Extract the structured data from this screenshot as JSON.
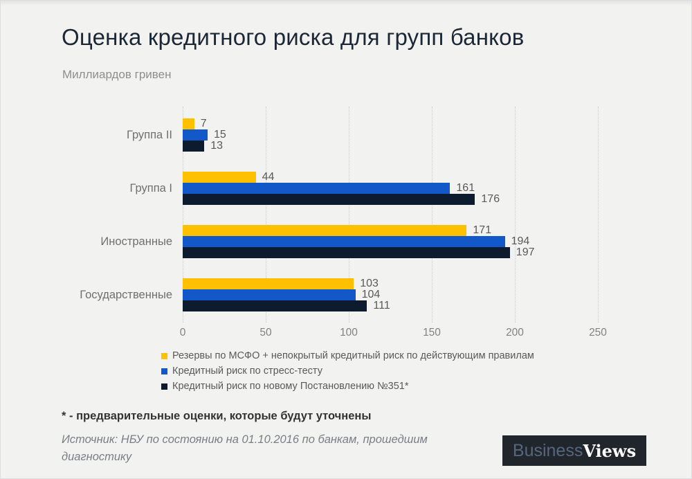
{
  "header": {
    "title": "Оценка кредитного риска для групп банков",
    "subtitle": "Миллиардов гривен"
  },
  "chart_data": {
    "type": "bar",
    "orientation": "horizontal",
    "title": "Оценка кредитного риска для групп банков",
    "units_label": "Миллиардов гривен",
    "categories": [
      "Группа II",
      "Группа I",
      "Иностранные",
      "Государственные"
    ],
    "series": [
      {
        "name": "Резервы по МСФО + непокрытый кредитный риск по действующим  правилам",
        "color": "#FFC000",
        "values": [
          7,
          44,
          171,
          103
        ]
      },
      {
        "name": "Кредитный риск по стресс-тесту",
        "color": "#1358C9",
        "values": [
          15,
          161,
          194,
          104
        ]
      },
      {
        "name": "Кредитный риск по новому Постановлению  №351*",
        "color": "#0D1B2E",
        "values": [
          13,
          176,
          197,
          111
        ]
      }
    ],
    "x_ticks": [
      0,
      50,
      100,
      150,
      200,
      250
    ],
    "xlim": [
      0,
      250
    ],
    "grid": "vertical-dotted",
    "legend_position": "bottom-left",
    "value_labels": "outside-end"
  },
  "footnote": "* - предварительные оценки, которые будут уточнены",
  "source": "Источник: НБУ по состоянию на 01.10.2016 по банкам, прошедшим диагностику",
  "logo": {
    "part1": "Business",
    "part2": "Views"
  }
}
